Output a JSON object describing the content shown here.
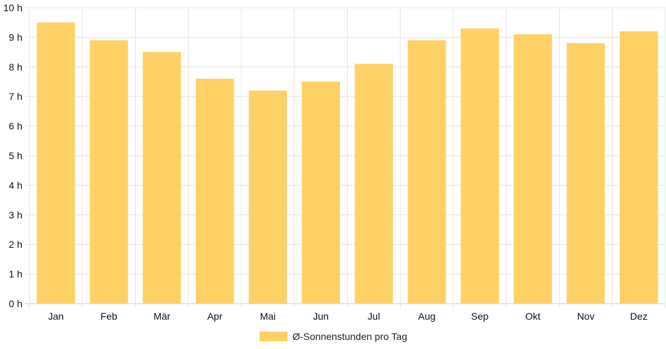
{
  "chart_data": {
    "type": "bar",
    "title": "",
    "xlabel": "",
    "ylabel": "",
    "categories": [
      "Jan",
      "Feb",
      "Mär",
      "Apr",
      "Mai",
      "Jun",
      "Jul",
      "Aug",
      "Sep",
      "Okt",
      "Nov",
      "Dez"
    ],
    "series": [
      {
        "name": "Ø-Sonnenstunden pro Tag",
        "values": [
          9.5,
          8.9,
          8.5,
          7.6,
          7.2,
          7.5,
          8.1,
          8.9,
          9.3,
          9.1,
          8.8,
          9.2
        ]
      }
    ],
    "ylim": [
      0,
      10
    ],
    "y_ticks": [
      "0 h",
      "1 h",
      "2 h",
      "3 h",
      "4 h",
      "5 h",
      "6 h",
      "7 h",
      "8 h",
      "9 h",
      "10 h"
    ],
    "y_unit": "h",
    "grid": true,
    "legend_position": "bottom",
    "bar_color": "#fdd166",
    "grid_color": "#e6e6e6"
  }
}
